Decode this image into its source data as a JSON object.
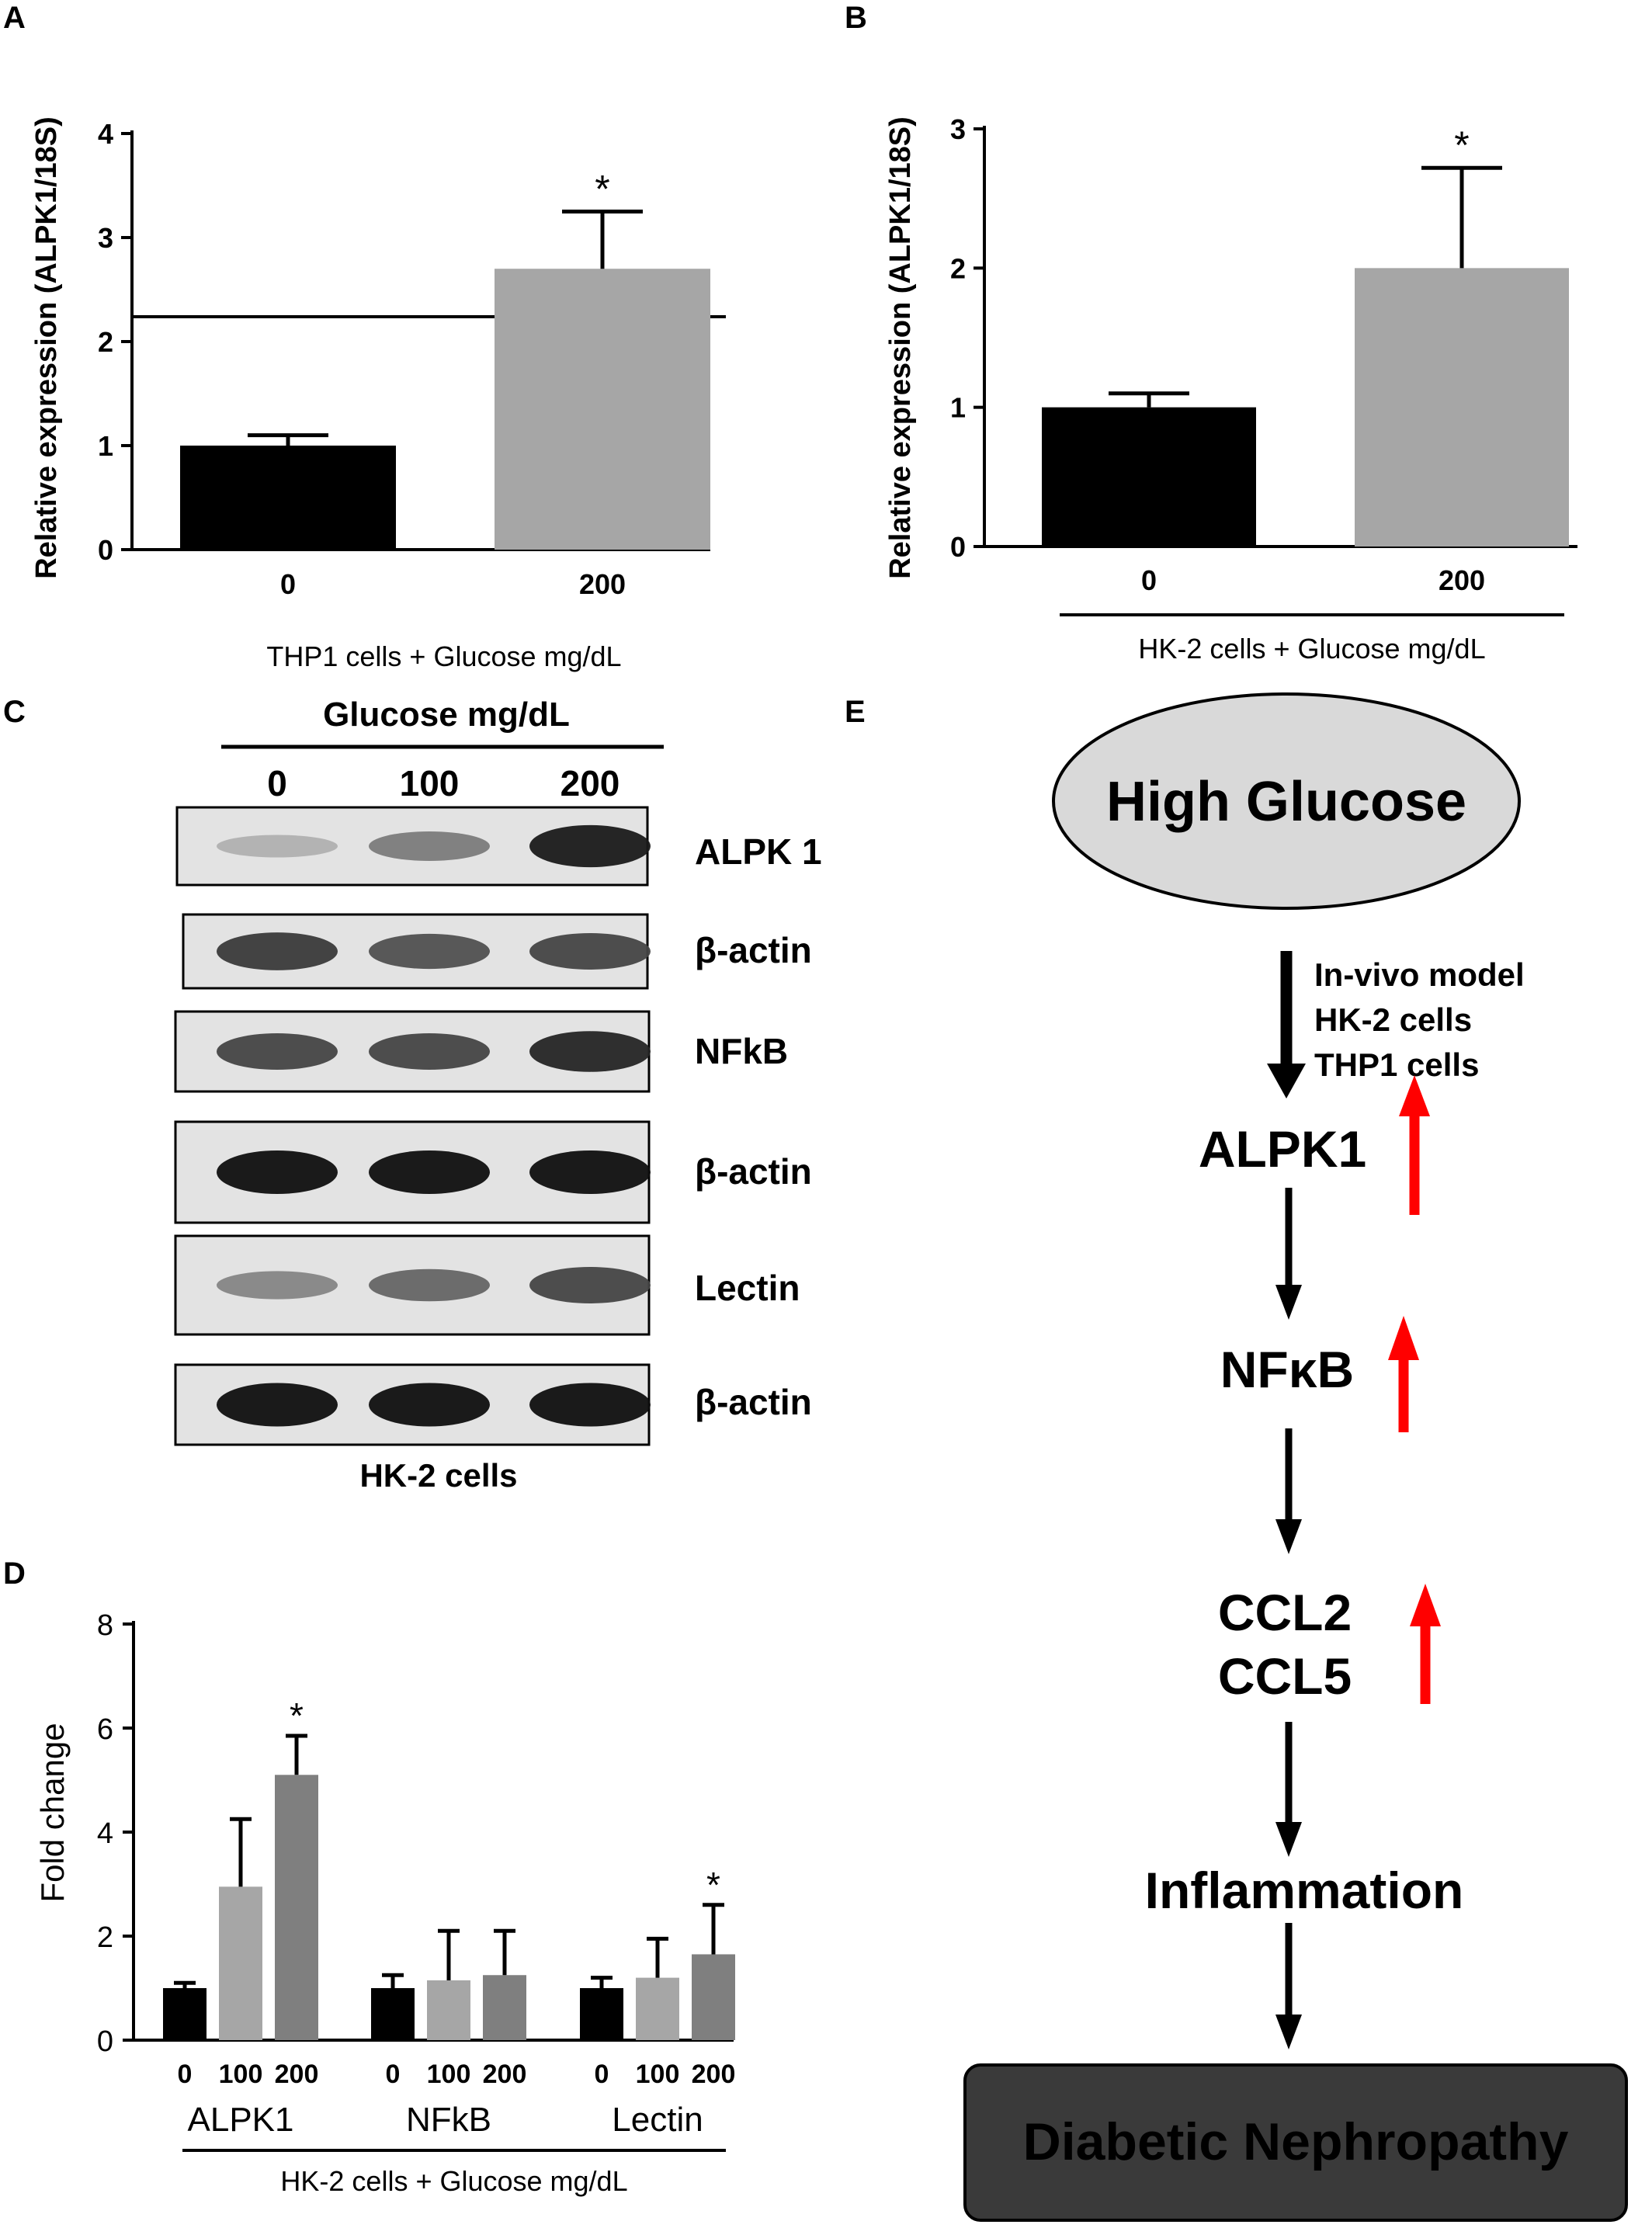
{
  "panels": {
    "A": {
      "label": "A"
    },
    "B": {
      "label": "B"
    },
    "C": {
      "label": "C"
    },
    "D": {
      "label": "D"
    },
    "E": {
      "label": "E"
    }
  },
  "chart_data": [
    {
      "panel": "A",
      "type": "bar",
      "categories": [
        "0",
        "200"
      ],
      "values": [
        1.0,
        2.7
      ],
      "error": [
        0.1,
        0.55
      ],
      "significance": [
        "",
        "*"
      ],
      "colors": [
        "#000000",
        "#a6a6a6"
      ],
      "ylabel": "Relative expression (ALPK1/18S)",
      "xlabel": "THP1 cells + Glucose mg/dL",
      "ylim": [
        0,
        4
      ],
      "yticks": [
        "0",
        "1",
        "2",
        "3",
        "4"
      ]
    },
    {
      "panel": "B",
      "type": "bar",
      "categories": [
        "0",
        "200"
      ],
      "values": [
        1.0,
        2.0
      ],
      "error": [
        0.1,
        0.72
      ],
      "significance": [
        "",
        "*"
      ],
      "colors": [
        "#000000",
        "#a6a6a6"
      ],
      "ylabel": "Relative expression (ALPK1/18S)",
      "xlabel": "HK-2 cells + Glucose mg/dL",
      "ylim": [
        0,
        3
      ],
      "yticks": [
        "0",
        "1",
        "2",
        "3"
      ]
    },
    {
      "panel": "D",
      "type": "bar",
      "groups": [
        "ALPK1",
        "NFkB",
        "Lectin"
      ],
      "categories": [
        "0",
        "100",
        "200"
      ],
      "series": [
        {
          "values": [
            1.0,
            1.0,
            1.0
          ],
          "error": [
            0.1,
            0.25,
            0.2
          ],
          "color": "#000000"
        },
        {
          "values": [
            2.95,
            1.15,
            1.2
          ],
          "error": [
            1.3,
            0.95,
            0.75
          ],
          "color": "#a6a6a6"
        },
        {
          "values": [
            5.1,
            1.25,
            1.65
          ],
          "error": [
            0.75,
            0.85,
            0.95
          ],
          "color": "#7f7f7f"
        }
      ],
      "significance": [
        [
          "",
          "",
          "*"
        ],
        [
          "",
          "",
          ""
        ],
        [
          "",
          "",
          "*"
        ]
      ],
      "ylabel": "Fold change",
      "xlabel": "HK-2 cells + Glucose mg/dL",
      "ylim": [
        0,
        8
      ],
      "yticks": [
        "0",
        "2",
        "4",
        "6",
        "8"
      ]
    }
  ],
  "blot": {
    "header": "Glucose mg/dL",
    "lanes": [
      "0",
      "100",
      "200"
    ],
    "rows": [
      {
        "label": "ALPK 1",
        "intensity": [
          0.25,
          0.5,
          0.95
        ]
      },
      {
        "label": "β-actin",
        "intensity": [
          0.8,
          0.7,
          0.75
        ]
      },
      {
        "label": "NFkB",
        "intensity": [
          0.75,
          0.75,
          0.9
        ]
      },
      {
        "label": "β-actin",
        "intensity": [
          1.0,
          1.0,
          1.0
        ]
      },
      {
        "label": "Lectin",
        "intensity": [
          0.45,
          0.6,
          0.75
        ]
      },
      {
        "label": "β-actin",
        "intensity": [
          1.0,
          1.0,
          1.0
        ]
      }
    ],
    "footer": "HK-2 cells"
  },
  "diagram": {
    "start": "High Glucose",
    "evidence": [
      "In-vivo model",
      "HK-2 cells",
      "THP1 cells"
    ],
    "steps": [
      "ALPK1",
      "NFκB",
      "CCL2",
      "CCL5",
      "Inflammation"
    ],
    "outcome": "Diabetic Nephropathy",
    "up_color": "#ff0000",
    "ellipse_color": "#d9d9d9",
    "outcome_bg": "#3a3a3a",
    "outcome_color": "#ff0000"
  }
}
